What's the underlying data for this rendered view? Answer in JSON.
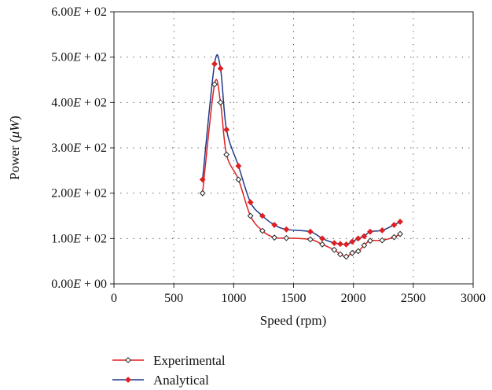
{
  "chart_data": {
    "type": "line",
    "xlabel": "Speed (rpm)",
    "ylabel_text": "Power (",
    "ylabel_unit": "μW",
    "ylabel_close": ")",
    "xlim": [
      0,
      3000
    ],
    "ylim": [
      0,
      600
    ],
    "x_ticks": [
      {
        "value": 0,
        "label": "0"
      },
      {
        "value": 500,
        "label": "500"
      },
      {
        "value": 1000,
        "label": "1000"
      },
      {
        "value": 1500,
        "label": "1500"
      },
      {
        "value": 2000,
        "label": "2000"
      },
      {
        "value": 2500,
        "label": "2500"
      },
      {
        "value": 3000,
        "label": "3000"
      }
    ],
    "y_ticks": [
      {
        "value": 0,
        "mant": "0.00",
        "exp": "E",
        "tail": " + 00"
      },
      {
        "value": 100,
        "mant": "1.00",
        "exp": "E",
        "tail": " + 02"
      },
      {
        "value": 200,
        "mant": "2.00",
        "exp": "E",
        "tail": " + 02"
      },
      {
        "value": 300,
        "mant": "3.00",
        "exp": "E",
        "tail": " + 02"
      },
      {
        "value": 400,
        "mant": "4.00",
        "exp": "E",
        "tail": " + 02"
      },
      {
        "value": 500,
        "mant": "5.00",
        "exp": "E",
        "tail": " + 02"
      },
      {
        "value": 600,
        "mant": "6.00",
        "exp": "E",
        "tail": " + 02"
      }
    ],
    "grid": "dotted",
    "legend_position": "bottom-left",
    "series": [
      {
        "name": "Experimental",
        "color": "#e02020",
        "marker_fill": "#ffffff",
        "x": [
          740,
          840,
          890,
          940,
          1040,
          1140,
          1240,
          1340,
          1440,
          1640,
          1740,
          1840,
          1890,
          1940,
          1990,
          2040,
          2090,
          2140,
          2240,
          2340,
          2390
        ],
        "y": [
          200,
          440,
          400,
          285,
          230,
          150,
          117,
          102,
          101,
          98,
          87,
          75,
          65,
          60,
          68,
          72,
          85,
          95,
          96,
          103,
          110
        ]
      },
      {
        "name": "Analytical",
        "color": "#1f3a8a",
        "marker_fill": "#e02020",
        "x": [
          740,
          840,
          890,
          940,
          1040,
          1140,
          1240,
          1340,
          1440,
          1640,
          1740,
          1840,
          1890,
          1940,
          1990,
          2040,
          2090,
          2140,
          2240,
          2340,
          2390
        ],
        "y": [
          230,
          485,
          475,
          340,
          260,
          180,
          150,
          130,
          120,
          115,
          100,
          90,
          88,
          87,
          93,
          100,
          105,
          115,
          118,
          130,
          137
        ]
      }
    ]
  }
}
